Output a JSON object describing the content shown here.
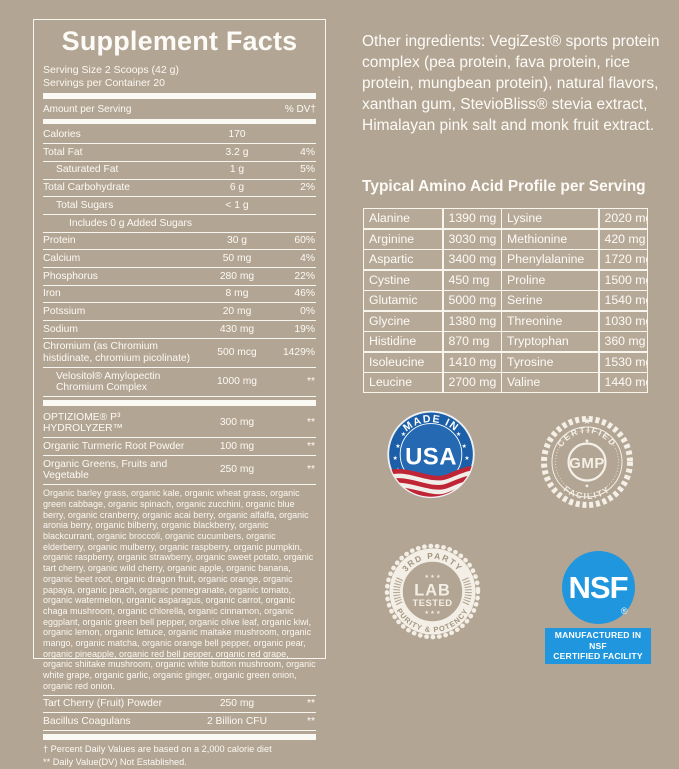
{
  "colors": {
    "background": "#b3a593",
    "panel_line_white": "#f8f5ef",
    "usa_blue": "#1c5fa8",
    "usa_red": "#c02536",
    "nsf_blue": "#1f96dd",
    "badge_cream": "#f4f0e7"
  },
  "supplement_facts": {
    "title": "Supplement Facts",
    "serving_size": "Serving Size 2 Scoops (42 g)",
    "servings_per_container": "Servings per Container 20",
    "header": {
      "amount": "Amount per Serving",
      "dv": "% DV†"
    },
    "rows": [
      {
        "label": "Calories",
        "amount": "170",
        "dv": "",
        "indent": 0
      },
      {
        "label": "Total Fat",
        "amount": "3.2 g",
        "dv": "4%",
        "indent": 0
      },
      {
        "label": "Saturated Fat",
        "amount": "1 g",
        "dv": "5%",
        "indent": 1
      },
      {
        "label": "Total Carbohydrate",
        "amount": "6 g",
        "dv": "2%",
        "indent": 0
      },
      {
        "label": "Total Sugars",
        "amount": "< 1 g",
        "dv": "",
        "indent": 1
      },
      {
        "label": "Includes 0 g Added Sugars",
        "amount": "",
        "dv": "",
        "indent": 2
      },
      {
        "label": "Protein",
        "amount": "30 g",
        "dv": "60%",
        "indent": 0
      },
      {
        "label": "Calcium",
        "amount": "50 mg",
        "dv": "4%",
        "indent": 0
      },
      {
        "label": "Phosphorus",
        "amount": "280 mg",
        "dv": "22%",
        "indent": 0
      },
      {
        "label": "Iron",
        "amount": "8 mg",
        "dv": "46%",
        "indent": 0
      },
      {
        "label": "Potssium",
        "amount": "20 mg",
        "dv": "0%",
        "indent": 0
      },
      {
        "label": "Sodium",
        "amount": "430 mg",
        "dv": "19%",
        "indent": 0
      },
      {
        "label": "Chromium (as Chromium histidinate, chromium picolinate)",
        "amount": "500 mcg",
        "dv": "1429%",
        "indent": 0
      },
      {
        "label": "Velositol® Amylopectin Chromium Complex",
        "amount": "1000 mg",
        "dv": "**",
        "indent": 1,
        "bar_after": true
      },
      {
        "label": "OPTIZIOME® P³ HYDROLYZER™",
        "amount": "300 mg",
        "dv": "**",
        "indent": 0
      },
      {
        "label": "Organic Turmeric Root Powder",
        "amount": "100 mg",
        "dv": "**",
        "indent": 0
      },
      {
        "label": "Organic Greens, Fruits and Vegetable",
        "amount": "250 mg",
        "dv": "**",
        "indent": 0
      }
    ],
    "greens_blend_paragraph": "Organic barley grass, organic kale, organic wheat grass, organic green cabbage, organic spinach, organic zucchini, organic blue berry, organic cranberry, organic acai berry, organic alfalfa, organic aronia berry, organic bilberry, organic blackberry, organic blackcurrant, organic broccoli, organic cucumbers, organic elderberry, organic mulberry, organic raspberry, organic pumpkin, organic raspberry, organic strawberry, organic sweet potato, organic tart cherry, organic wild cherry, organic apple, organic banana, organic beet root, organic dragon fruit, organic orange, organic papaya, organic peach, organic pomegranate, organic tomato, organic watermelon, organic asparagus, organic carrot, organic chaga mushroom, organic chlorella, organic cinnamon, organic eggplant, organic green bell pepper, organic olive leaf, organic kiwi, organic lemon, organic lettuce, organic maitake mushroom, organic mango, organic matcha, organic orange bell pepper, organic pear, organic pineapple, organic red bell pepper, organic red grape, organic shiitake mushroom, organic white button mushroom, organic white grape, organic garlic, organic ginger, organic green onion, organic red onion.",
    "extra_rows": [
      {
        "label": "Tart Cherry (Fruit) Powder",
        "amount": "250 mg",
        "dv": "**",
        "indent": 0
      },
      {
        "label": "Bacillus Coagulans",
        "amount": "2 Billion CFU",
        "dv": "**",
        "indent": 0,
        "bar_after": true
      }
    ],
    "footnotes": [
      "† Percent Daily Values are based on a 2,000 calorie diet",
      "** Daily Value(DV) Not Established."
    ]
  },
  "other_ingredients": "Other ingredients: VegiZest® sports protein complex (pea protein, fava protein, rice protein, mungbean protein), natural flavors, xanthan gum, StevioBliss® stevia extract, Himalayan pink salt and monk fruit extract.",
  "amino_acid_profile": {
    "title": "Typical Amino Acid Profile per Serving",
    "rows": [
      [
        "Alanine",
        "1390 mg",
        "Lysine",
        "2020 mg"
      ],
      [
        "Arginine",
        "3030 mg",
        "Methionine",
        "420 mg"
      ],
      [
        "Aspartic",
        "3400 mg",
        "Phenylalanine",
        "1720 mg"
      ],
      [
        "Cystine",
        "450 mg",
        "Proline",
        "1500 mg"
      ],
      [
        "Glutamic",
        "5000 mg",
        "Serine",
        "1540 mg"
      ],
      [
        "Glycine",
        "1380 mg",
        "Threonine",
        "1030 mg"
      ],
      [
        "Histidine",
        "870 mg",
        "Tryptophan",
        "360 mg"
      ],
      [
        "Isoleucine",
        "1410 mg",
        "Tyrosine",
        "1530 mg"
      ],
      [
        "Leucine",
        "2700 mg",
        "Valine",
        "1440 mg"
      ]
    ]
  },
  "badges": {
    "made_in_usa": {
      "arc_top": "MADE IN",
      "center": "USA"
    },
    "gmp": {
      "arc_top": "CERTIFIED",
      "center": "GMP",
      "arc_bottom": "FACILITY",
      "star": "★",
      "ornament": "◆"
    },
    "lab_tested": {
      "arc_top": "3RD PARTY",
      "stars_top": "★ ★ ★",
      "center_line1": "LAB",
      "center_line2": "TESTED",
      "stars_bottom": "★ ★ ★",
      "arc_bottom": "PURITY & POTENCY"
    },
    "nsf": {
      "center": "NSF",
      "reg": "®",
      "caption_line1": "MANUFACTURED IN NSF",
      "caption_line2": "CERTIFIED FACILITY"
    }
  }
}
